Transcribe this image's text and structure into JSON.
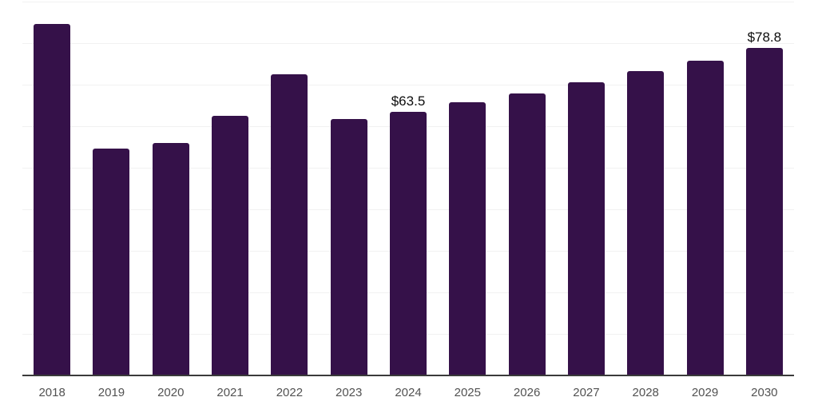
{
  "chart_data": {
    "type": "bar",
    "title": "",
    "xlabel": "",
    "ylabel": "",
    "categories": [
      "2018",
      "2019",
      "2020",
      "2021",
      "2022",
      "2023",
      "2024",
      "2025",
      "2026",
      "2027",
      "2028",
      "2029",
      "2030"
    ],
    "values": [
      84.6,
      54.6,
      56.0,
      62.5,
      72.5,
      61.7,
      63.5,
      65.8,
      67.9,
      70.6,
      73.3,
      75.8,
      78.8
    ],
    "data_labels": [
      {
        "category": "2024",
        "text": "$63.5"
      },
      {
        "category": "2030",
        "text": "$78.8"
      }
    ],
    "ylim": [
      0,
      90.4
    ],
    "gridline_step": 10,
    "grid": true,
    "legend": "none",
    "y_axis_visible": false,
    "colors": {
      "bar": "#351149",
      "gridline": "#f1f1f1",
      "axis_line": "#3a3a3a",
      "tick_label": "#525252",
      "data_label": "#0d0d0d",
      "background": "#ffffff"
    }
  }
}
